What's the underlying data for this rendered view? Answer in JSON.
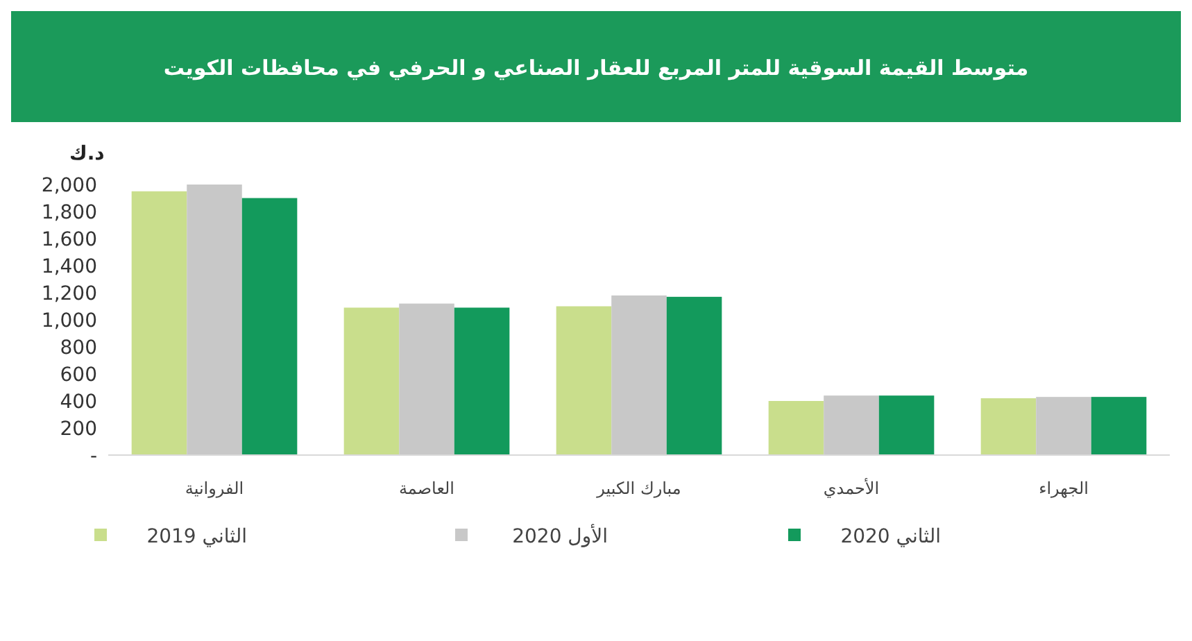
{
  "chart_data": {
    "type": "bar",
    "title": "متوسط القيمة السوقية للمتر المربع للعقار الصناعي و الحرفي في محافظات الكويت",
    "ylabel": "د.ك",
    "categories": [
      "الفروانية",
      "العاصمة",
      "مبارك الكبير",
      "الأحمدي",
      "الجهراء"
    ],
    "series": [
      {
        "name": "الثاني 2019",
        "color": "#c9de8c",
        "values": [
          1950,
          1090,
          1100,
          400,
          420
        ]
      },
      {
        "name": "الأول 2020",
        "color": "#c8c8c8",
        "values": [
          2000,
          1120,
          1180,
          440,
          430
        ]
      },
      {
        "name": "الثاني 2020",
        "color": "#139a5c",
        "values": [
          1900,
          1090,
          1170,
          440,
          430
        ]
      }
    ],
    "ylim": [
      0,
      2000
    ],
    "yticks": [
      {
        "value": 0,
        "label": "-"
      },
      {
        "value": 200,
        "label": "200"
      },
      {
        "value": 400,
        "label": "400"
      },
      {
        "value": 600,
        "label": "600"
      },
      {
        "value": 800,
        "label": "800"
      },
      {
        "value": 1000,
        "label": "1,000"
      },
      {
        "value": 1200,
        "label": "1,200"
      },
      {
        "value": 1400,
        "label": "1,400"
      },
      {
        "value": 1600,
        "label": "1,600"
      },
      {
        "value": 1800,
        "label": "1,800"
      },
      {
        "value": 2000,
        "label": "2,000"
      }
    ],
    "grid": false,
    "legend": "bottom"
  }
}
